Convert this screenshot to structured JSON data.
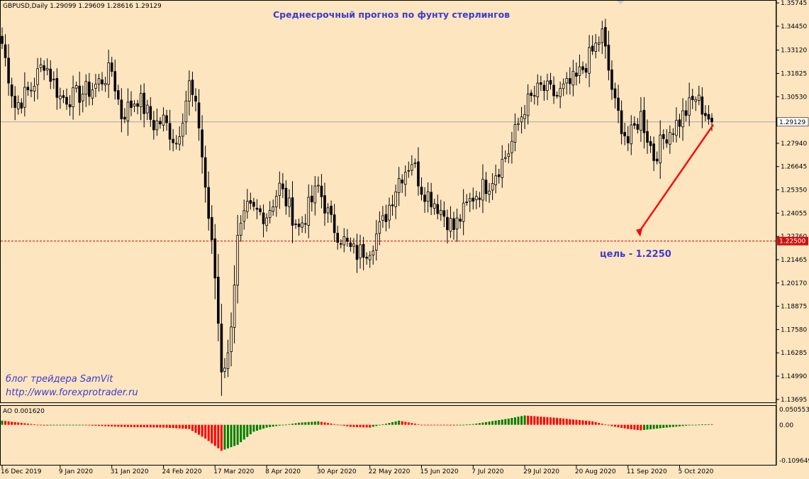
{
  "main": {
    "symbol_header": "GBPUSD,Daily  1.29099 1.29609 1.28616 1.29129",
    "title": "Среднесрочный прогноз по фунту стерлингов",
    "target_label": "цель - 1.2250",
    "blog_line1": "блог трейдера SamVit",
    "blog_line2": "http://www.forexprotrader.ru",
    "current_price_tag": "1.29129",
    "target_price_tag": "1.22500"
  },
  "indicator": {
    "header": "AO 0.001620",
    "y_labels": [
      "0.050553",
      "0.00",
      "-0.109649"
    ]
  },
  "colors": {
    "background": "#fde5c0",
    "candle": "#000000",
    "arrow": "#ff0000",
    "title_text": "#3b3bd0",
    "ao_up": "#008000",
    "ao_down": "#ff0000"
  },
  "chart_data": [
    {
      "type": "candlestick",
      "title": "Среднесрочный прогноз по фунту стерлингов",
      "symbol": "GBPUSD",
      "timeframe": "Daily",
      "last_bar": {
        "open": 1.29099,
        "high": 1.29609,
        "low": 1.28616,
        "close": 1.29129
      },
      "ylim": [
        1.1365,
        1.3575
      ],
      "y_ticks": [
        "1.35745",
        "1.34450",
        "1.33120",
        "1.31825",
        "1.30530",
        "1.29129",
        "1.27940",
        "1.26645",
        "1.25350",
        "1.24055",
        "1.22760",
        "1.22500",
        "1.21465",
        "1.20170",
        "1.18875",
        "1.17580",
        "1.16285",
        "1.14990",
        "1.13695"
      ],
      "x_labels": [
        "16 Dec 2019",
        "9 Jan 2020",
        "31 Jan 2020",
        "24 Feb 2020",
        "17 Mar 2020",
        "8 Apr 2020",
        "30 Apr 2020",
        "22 May 2020",
        "15 Jun 2020",
        "7 Jul 2020",
        "29 Jul 2020",
        "20 Aug 2020",
        "11 Sep 2020",
        "5 Oct 2020"
      ],
      "target_level": 1.225,
      "current_level": 1.29129,
      "annotation": "цель - 1.2250",
      "close_path": [
        {
          "date": "16 Dec 2019",
          "close": 1.335
        },
        {
          "date": "20 Dec 2019",
          "close": 1.3
        },
        {
          "date": "27 Dec 2019",
          "close": 1.31
        },
        {
          "date": "2 Jan 2020",
          "close": 1.325
        },
        {
          "date": "9 Jan 2020",
          "close": 1.305
        },
        {
          "date": "15 Jan 2020",
          "close": 1.305
        },
        {
          "date": "23 Jan 2020",
          "close": 1.31
        },
        {
          "date": "31 Jan 2020",
          "close": 1.32
        },
        {
          "date": "5 Feb 2020",
          "close": 1.295
        },
        {
          "date": "12 Feb 2020",
          "close": 1.305
        },
        {
          "date": "19 Feb 2020",
          "close": 1.29
        },
        {
          "date": "24 Feb 2020",
          "close": 1.292
        },
        {
          "date": "28 Feb 2020",
          "close": 1.28
        },
        {
          "date": "5 Mar 2020",
          "close": 1.312
        },
        {
          "date": "10 Mar 2020",
          "close": 1.29
        },
        {
          "date": "12 Mar 2020",
          "close": 1.255
        },
        {
          "date": "17 Mar 2020",
          "close": 1.205
        },
        {
          "date": "19 Mar 2020",
          "close": 1.155
        },
        {
          "date": "23 Mar 2020",
          "close": 1.16
        },
        {
          "date": "26 Mar 2020",
          "close": 1.225
        },
        {
          "date": "31 Mar 2020",
          "close": 1.242
        },
        {
          "date": "8 Apr 2020",
          "close": 1.24
        },
        {
          "date": "14 Apr 2020",
          "close": 1.255
        },
        {
          "date": "22 Apr 2020",
          "close": 1.232
        },
        {
          "date": "30 Apr 2020",
          "close": 1.255
        },
        {
          "date": "6 May 2020",
          "close": 1.235
        },
        {
          "date": "14 May 2020",
          "close": 1.22
        },
        {
          "date": "18 May 2020",
          "close": 1.218
        },
        {
          "date": "22 May 2020",
          "close": 1.222
        },
        {
          "date": "28 May 2020",
          "close": 1.235
        },
        {
          "date": "4 Jun 2020",
          "close": 1.26
        },
        {
          "date": "10 Jun 2020",
          "close": 1.27
        },
        {
          "date": "15 Jun 2020",
          "close": 1.255
        },
        {
          "date": "22 Jun 2020",
          "close": 1.245
        },
        {
          "date": "29 Jun 2020",
          "close": 1.232
        },
        {
          "date": "7 Jul 2020",
          "close": 1.25
        },
        {
          "date": "14 Jul 2020",
          "close": 1.258
        },
        {
          "date": "22 Jul 2020",
          "close": 1.275
        },
        {
          "date": "29 Jul 2020",
          "close": 1.3
        },
        {
          "date": "5 Aug 2020",
          "close": 1.31
        },
        {
          "date": "12 Aug 2020",
          "close": 1.306
        },
        {
          "date": "20 Aug 2020",
          "close": 1.315
        },
        {
          "date": "27 Aug 2020",
          "close": 1.33
        },
        {
          "date": "1 Sep 2020",
          "close": 1.34
        },
        {
          "date": "7 Sep 2020",
          "close": 1.3
        },
        {
          "date": "11 Sep 2020",
          "close": 1.28
        },
        {
          "date": "17 Sep 2020",
          "close": 1.295
        },
        {
          "date": "23 Sep 2020",
          "close": 1.272
        },
        {
          "date": "29 Sep 2020",
          "close": 1.285
        },
        {
          "date": "5 Oct 2020",
          "close": 1.292
        },
        {
          "date": "12 Oct 2020",
          "close": 1.305
        },
        {
          "date": "19 Oct 2020",
          "close": 1.291
        }
      ]
    },
    {
      "type": "bar",
      "title": "AO 0.001620",
      "indicator": "Awesome Oscillator",
      "ylim": [
        -0.109649,
        0.050553
      ],
      "last_value": 0.00162,
      "path": [
        {
          "date": "16 Dec 2019",
          "value": 0.012
        },
        {
          "date": "2 Jan 2020",
          "value": -0.002
        },
        {
          "date": "20 Jan 2020",
          "value": -0.001
        },
        {
          "date": "5 Feb 2020",
          "value": -0.006
        },
        {
          "date": "24 Feb 2020",
          "value": -0.008
        },
        {
          "date": "5 Mar 2020",
          "value": -0.012
        },
        {
          "date": "12 Mar 2020",
          "value": -0.04
        },
        {
          "date": "19 Mar 2020",
          "value": -0.075
        },
        {
          "date": "26 Mar 2020",
          "value": -0.058
        },
        {
          "date": "2 Apr 2020",
          "value": -0.02
        },
        {
          "date": "8 Apr 2020",
          "value": -0.008
        },
        {
          "date": "22 Apr 2020",
          "value": 0.006
        },
        {
          "date": "30 Apr 2020",
          "value": 0.01
        },
        {
          "date": "14 May 2020",
          "value": -0.006
        },
        {
          "date": "22 May 2020",
          "value": -0.008
        },
        {
          "date": "4 Jun 2020",
          "value": 0.012
        },
        {
          "date": "15 Jun 2020",
          "value": 0.0
        },
        {
          "date": "29 Jun 2020",
          "value": -0.002
        },
        {
          "date": "7 Jul 2020",
          "value": 0.002
        },
        {
          "date": "22 Jul 2020",
          "value": 0.018
        },
        {
          "date": "29 Jul 2020",
          "value": 0.027
        },
        {
          "date": "12 Aug 2020",
          "value": 0.02
        },
        {
          "date": "27 Aug 2020",
          "value": 0.01
        },
        {
          "date": "4 Sep 2020",
          "value": -0.004
        },
        {
          "date": "11 Sep 2020",
          "value": -0.012
        },
        {
          "date": "17 Sep 2020",
          "value": -0.016
        },
        {
          "date": "29 Sep 2020",
          "value": -0.008
        },
        {
          "date": "12 Oct 2020",
          "value": 0.0
        },
        {
          "date": "19 Oct 2020",
          "value": 0.002
        }
      ]
    }
  ]
}
